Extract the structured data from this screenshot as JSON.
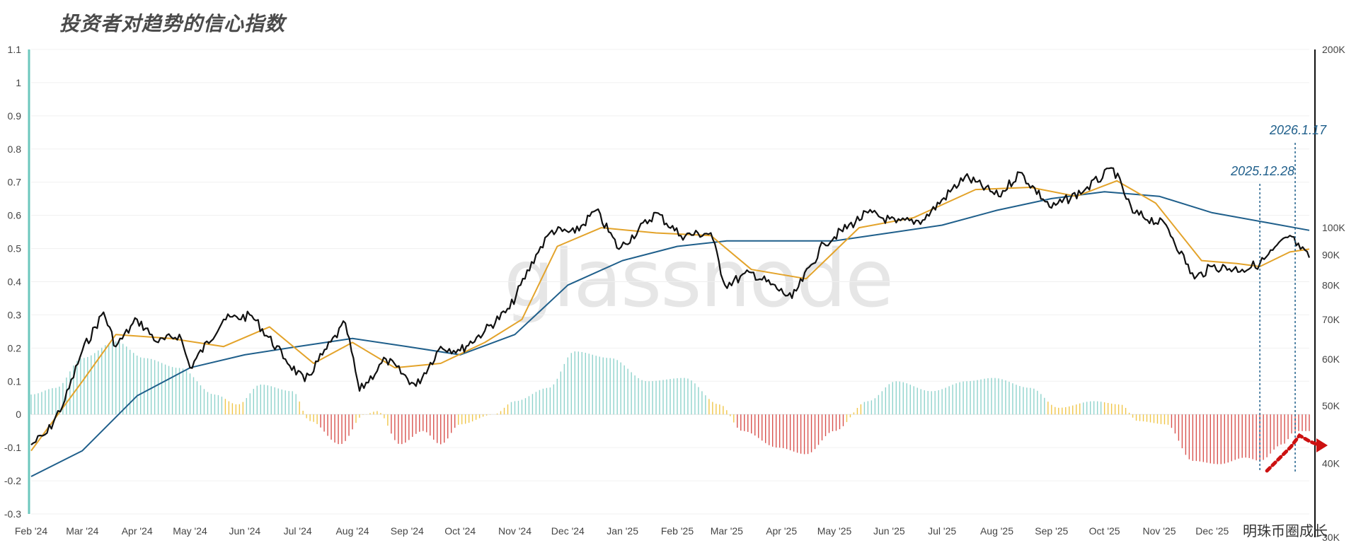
{
  "title": "投资者对趋势的信心指数",
  "watermark": "glassnode",
  "credit": "明珠币圈成长",
  "colors": {
    "positive_bar": "#8fd3cc",
    "transition_bar": "#f0c64a",
    "negative_bar": "#d9534f",
    "price_line": "#111111",
    "fast_ma": "#e3a32a",
    "slow_ma": "#1f5f8b",
    "left_axis": "#6cc7bd",
    "marker": "#1f5f8b",
    "arrow": "#cc1111"
  },
  "annotations": [
    {
      "label": "2025.12.28",
      "date": "2025-12-28"
    },
    {
      "label": "2026.1.17",
      "date": "2026-01-17"
    }
  ],
  "chart_data": {
    "type": "line",
    "x_axis": {
      "labels": [
        "Feb '24",
        "Mar '24",
        "Apr '24",
        "May '24",
        "Jun '24",
        "Jul '24",
        "Aug '24",
        "Sep '24",
        "Oct '24",
        "Nov '24",
        "Dec '24",
        "Jan '25",
        "Feb '25",
        "Mar '25",
        "Apr '25",
        "May '25",
        "Jun '25",
        "Jul '25",
        "Aug '25",
        "Sep '25",
        "Oct '25",
        "Nov '25",
        "Dec '25"
      ],
      "range": [
        "2024-02-01",
        "2026-01-25"
      ]
    },
    "y_left": {
      "ticks": [
        1.1,
        1,
        0.9,
        0.8,
        0.7,
        0.6,
        0.5,
        0.4,
        0.3,
        0.2,
        0.1,
        0,
        -0.1,
        -0.2,
        -0.3
      ],
      "tick_labels": [
        "1.1",
        "1",
        "0.9",
        "0.8",
        "0.7",
        "0.6",
        "0.5",
        "0.4",
        "0.3",
        "0.2",
        "0.1",
        "0",
        "-0.1",
        "-0.2",
        "-0.3"
      ],
      "range": [
        -0.3,
        1.1
      ]
    },
    "y_right": {
      "scale": "log",
      "ticks": [
        200000,
        100000,
        90000,
        80000,
        70000,
        60000,
        50000,
        40000,
        30000
      ],
      "tick_labels": [
        "200K",
        "100K",
        "90K",
        "80K",
        "70K",
        "60K",
        "50K",
        "40K",
        "30K"
      ],
      "range": [
        30000,
        200000
      ]
    },
    "grid": true,
    "confidence_index_histogram": [
      [
        "2024-02-01",
        0.06
      ],
      [
        "2024-02-15",
        0.08
      ],
      [
        "2024-03-01",
        0.17
      ],
      [
        "2024-03-20",
        0.22
      ],
      [
        "2024-04-05",
        0.17
      ],
      [
        "2024-04-25",
        0.14
      ],
      [
        "2024-05-15",
        0.06
      ],
      [
        "2024-05-28",
        0.03
      ],
      [
        "2024-06-10",
        0.09
      ],
      [
        "2024-06-28",
        0.07
      ],
      [
        "2024-07-08",
        -0.02
      ],
      [
        "2024-07-25",
        -0.09
      ],
      [
        "2024-08-08",
        0.0
      ],
      [
        "2024-08-15",
        0.01
      ],
      [
        "2024-08-28",
        -0.09
      ],
      [
        "2024-09-10",
        -0.05
      ],
      [
        "2024-09-20",
        -0.09
      ],
      [
        "2024-10-01",
        -0.03
      ],
      [
        "2024-10-20",
        0.0
      ],
      [
        "2024-11-01",
        0.04
      ],
      [
        "2024-11-20",
        0.08
      ],
      [
        "2024-12-05",
        0.19
      ],
      [
        "2024-12-25",
        0.17
      ],
      [
        "2025-01-15",
        0.1
      ],
      [
        "2025-02-05",
        0.11
      ],
      [
        "2025-02-25",
        0.03
      ],
      [
        "2025-03-10",
        -0.05
      ],
      [
        "2025-03-30",
        -0.1
      ],
      [
        "2025-04-15",
        -0.12
      ],
      [
        "2025-05-01",
        -0.05
      ],
      [
        "2025-05-20",
        0.04
      ],
      [
        "2025-06-05",
        0.1
      ],
      [
        "2025-06-25",
        0.07
      ],
      [
        "2025-07-15",
        0.1
      ],
      [
        "2025-07-30",
        0.11
      ],
      [
        "2025-08-20",
        0.08
      ],
      [
        "2025-09-05",
        0.02
      ],
      [
        "2025-09-25",
        0.04
      ],
      [
        "2025-10-10",
        0.03
      ],
      [
        "2025-10-20",
        -0.02
      ],
      [
        "2025-11-05",
        -0.03
      ],
      [
        "2025-11-20",
        -0.14
      ],
      [
        "2025-12-05",
        -0.15
      ],
      [
        "2025-12-20",
        -0.13
      ],
      [
        "2025-12-28",
        -0.14
      ],
      [
        "2026-01-10",
        -0.09
      ],
      [
        "2026-01-17",
        -0.05
      ],
      [
        "2026-01-25",
        -0.05
      ]
    ],
    "series": [
      {
        "name": "",
        "axis": "right",
        "points": [
          [
            "2024-02-01",
            43000
          ],
          [
            "2024-02-10",
            45000
          ],
          [
            "2024-02-20",
            51000
          ],
          [
            "2024-03-01",
            62000
          ],
          [
            "2024-03-13",
            72000
          ],
          [
            "2024-03-20",
            63000
          ],
          [
            "2024-04-01",
            70000
          ],
          [
            "2024-04-13",
            64000
          ],
          [
            "2024-04-25",
            66000
          ],
          [
            "2024-05-01",
            58000
          ],
          [
            "2024-05-20",
            70000
          ],
          [
            "2024-06-05",
            71000
          ],
          [
            "2024-06-24",
            60000
          ],
          [
            "2024-07-05",
            55000
          ],
          [
            "2024-07-15",
            61000
          ],
          [
            "2024-07-28",
            69000
          ],
          [
            "2024-08-05",
            53000
          ],
          [
            "2024-08-20",
            60000
          ],
          [
            "2024-09-06",
            54000
          ],
          [
            "2024-09-20",
            63000
          ],
          [
            "2024-10-01",
            62000
          ],
          [
            "2024-10-15",
            67000
          ],
          [
            "2024-10-29",
            73000
          ],
          [
            "2024-11-13",
            90000
          ],
          [
            "2024-11-22",
            99000
          ],
          [
            "2024-12-05",
            98000
          ],
          [
            "2024-12-17",
            107000
          ],
          [
            "2024-12-30",
            92000
          ],
          [
            "2025-01-20",
            106000
          ],
          [
            "2025-02-03",
            97000
          ],
          [
            "2025-02-20",
            98000
          ],
          [
            "2025-02-28",
            80000
          ],
          [
            "2025-03-15",
            84000
          ],
          [
            "2025-04-07",
            76000
          ],
          [
            "2025-04-25",
            94000
          ],
          [
            "2025-05-20",
            106000
          ],
          [
            "2025-06-05",
            102000
          ],
          [
            "2025-06-20",
            103000
          ],
          [
            "2025-07-14",
            122000
          ],
          [
            "2025-08-02",
            113000
          ],
          [
            "2025-08-14",
            124000
          ],
          [
            "2025-09-01",
            108000
          ],
          [
            "2025-09-20",
            116000
          ],
          [
            "2025-10-06",
            126000
          ],
          [
            "2025-10-17",
            106000
          ],
          [
            "2025-11-05",
            101000
          ],
          [
            "2025-11-21",
            82000
          ],
          [
            "2025-12-01",
            86000
          ],
          [
            "2025-12-18",
            85000
          ],
          [
            "2025-12-28",
            87000
          ],
          [
            "2026-01-14",
            97000
          ],
          [
            "2026-01-20",
            92000
          ],
          [
            "2026-01-25",
            89000
          ]
        ]
      },
      {
        "name": "",
        "axis": "right",
        "points": [
          [
            "2024-02-01",
            42000
          ],
          [
            "2024-03-01",
            55000
          ],
          [
            "2024-03-20",
            66000
          ],
          [
            "2024-04-20",
            65000
          ],
          [
            "2024-05-20",
            63000
          ],
          [
            "2024-06-15",
            68000
          ],
          [
            "2024-07-10",
            59000
          ],
          [
            "2024-08-01",
            64000
          ],
          [
            "2024-08-25",
            58000
          ],
          [
            "2024-09-20",
            59000
          ],
          [
            "2024-10-15",
            64000
          ],
          [
            "2024-11-05",
            70000
          ],
          [
            "2024-11-25",
            93000
          ],
          [
            "2024-12-20",
            100000
          ],
          [
            "2025-01-20",
            98000
          ],
          [
            "2025-02-20",
            97000
          ],
          [
            "2025-03-15",
            85000
          ],
          [
            "2025-04-15",
            82000
          ],
          [
            "2025-05-15",
            100000
          ],
          [
            "2025-06-15",
            104000
          ],
          [
            "2025-07-20",
            116000
          ],
          [
            "2025-08-20",
            117000
          ],
          [
            "2025-09-15",
            113000
          ],
          [
            "2025-10-08",
            120000
          ],
          [
            "2025-10-30",
            110000
          ],
          [
            "2025-11-25",
            88000
          ],
          [
            "2025-12-15",
            87000
          ],
          [
            "2025-12-28",
            86000
          ],
          [
            "2026-01-14",
            91000
          ],
          [
            "2026-01-25",
            92000
          ]
        ]
      },
      {
        "name": "",
        "axis": "right",
        "points": [
          [
            "2024-02-01",
            38000
          ],
          [
            "2024-03-01",
            42000
          ],
          [
            "2024-04-01",
            52000
          ],
          [
            "2024-05-01",
            58000
          ],
          [
            "2024-06-01",
            61000
          ],
          [
            "2024-07-01",
            63000
          ],
          [
            "2024-08-01",
            65000
          ],
          [
            "2024-09-01",
            63000
          ],
          [
            "2024-10-01",
            61000
          ],
          [
            "2024-11-01",
            66000
          ],
          [
            "2024-12-01",
            80000
          ],
          [
            "2025-01-01",
            88000
          ],
          [
            "2025-02-01",
            93000
          ],
          [
            "2025-03-01",
            95000
          ],
          [
            "2025-04-01",
            95000
          ],
          [
            "2025-05-01",
            95000
          ],
          [
            "2025-06-01",
            98000
          ],
          [
            "2025-07-01",
            101000
          ],
          [
            "2025-08-01",
            107000
          ],
          [
            "2025-09-01",
            112000
          ],
          [
            "2025-10-01",
            115000
          ],
          [
            "2025-11-01",
            113000
          ],
          [
            "2025-12-01",
            106000
          ],
          [
            "2026-01-01",
            102000
          ],
          [
            "2026-01-25",
            99000
          ]
        ]
      }
    ]
  }
}
